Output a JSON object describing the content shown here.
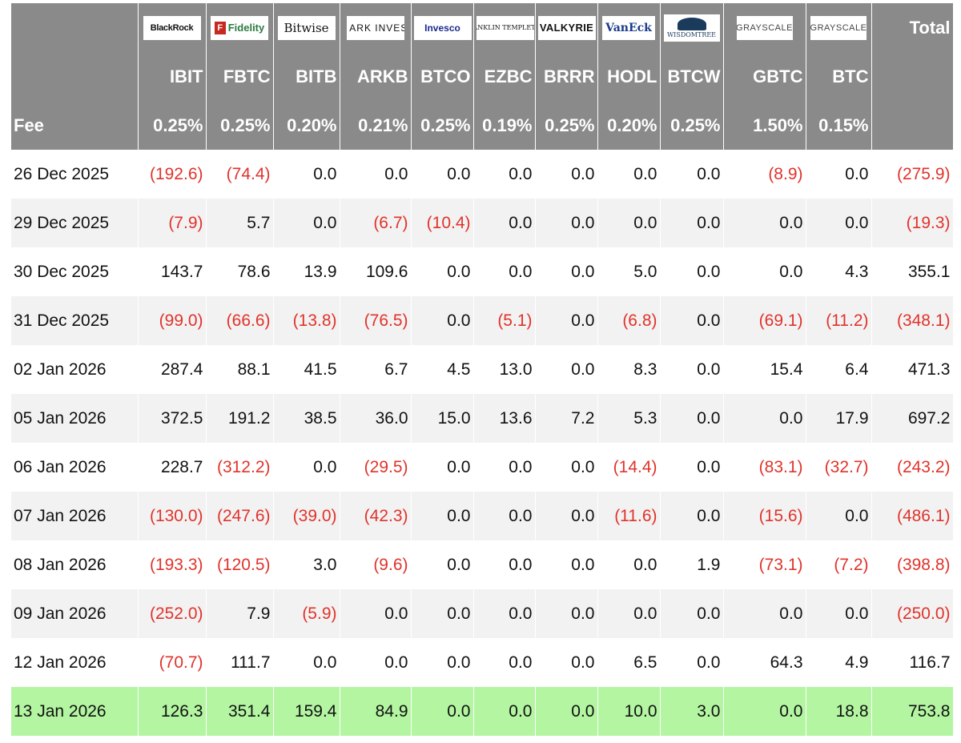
{
  "logos": [
    {
      "name": "blackrock-logo",
      "text": "BlackRock"
    },
    {
      "name": "fidelity-logo",
      "text": "Fidelity"
    },
    {
      "name": "bitwise-logo",
      "text": "Bitwise"
    },
    {
      "name": "ark-invest-logo",
      "text": "ARK INVEST"
    },
    {
      "name": "invesco-logo",
      "text": "Invesco"
    },
    {
      "name": "franklin-templeton-logo",
      "text": "FRANKLIN TEMPLETON"
    },
    {
      "name": "valkyrie-logo",
      "text": "VALKYRIE"
    },
    {
      "name": "vaneck-logo",
      "text": "VanEck"
    },
    {
      "name": "wisdomtree-logo",
      "text": "WISDOMTREE"
    },
    {
      "name": "grayscale-logo-gbtc",
      "text": "GRAYSCALE"
    },
    {
      "name": "grayscale-logo-btc",
      "text": "GRAYSCALE"
    }
  ],
  "header": {
    "total_label": "Total",
    "fee_label": "Fee",
    "tickers": [
      "IBIT",
      "FBTC",
      "BITB",
      "ARKB",
      "BTCO",
      "EZBC",
      "BRRR",
      "HODL",
      "BTCW",
      "GBTC",
      "BTC"
    ],
    "fees": [
      "0.25%",
      "0.25%",
      "0.20%",
      "0.21%",
      "0.25%",
      "0.19%",
      "0.25%",
      "0.20%",
      "0.25%",
      "1.50%",
      "0.15%"
    ]
  },
  "colors": {
    "header_bg": "#8a8a8a",
    "negative": "#e0332b",
    "highlight": "#b3f5a1"
  },
  "rows": [
    {
      "date": "26 Dec 2025",
      "values": [
        "(192.6)",
        "(74.4)",
        "0.0",
        "0.0",
        "0.0",
        "0.0",
        "0.0",
        "0.0",
        "0.0",
        "(8.9)",
        "0.0"
      ],
      "total": "(275.9)"
    },
    {
      "date": "29 Dec 2025",
      "values": [
        "(7.9)",
        "5.7",
        "0.0",
        "(6.7)",
        "(10.4)",
        "0.0",
        "0.0",
        "0.0",
        "0.0",
        "0.0",
        "0.0"
      ],
      "total": "(19.3)"
    },
    {
      "date": "30 Dec 2025",
      "values": [
        "143.7",
        "78.6",
        "13.9",
        "109.6",
        "0.0",
        "0.0",
        "0.0",
        "5.0",
        "0.0",
        "0.0",
        "4.3"
      ],
      "total": "355.1"
    },
    {
      "date": "31 Dec 2025",
      "values": [
        "(99.0)",
        "(66.6)",
        "(13.8)",
        "(76.5)",
        "0.0",
        "(5.1)",
        "0.0",
        "(6.8)",
        "0.0",
        "(69.1)",
        "(11.2)"
      ],
      "total": "(348.1)"
    },
    {
      "date": "02 Jan 2026",
      "values": [
        "287.4",
        "88.1",
        "41.5",
        "6.7",
        "4.5",
        "13.0",
        "0.0",
        "8.3",
        "0.0",
        "15.4",
        "6.4"
      ],
      "total": "471.3"
    },
    {
      "date": "05 Jan 2026",
      "values": [
        "372.5",
        "191.2",
        "38.5",
        "36.0",
        "15.0",
        "13.6",
        "7.2",
        "5.3",
        "0.0",
        "0.0",
        "17.9"
      ],
      "total": "697.2"
    },
    {
      "date": "06 Jan 2026",
      "values": [
        "228.7",
        "(312.2)",
        "0.0",
        "(29.5)",
        "0.0",
        "0.0",
        "0.0",
        "(14.4)",
        "0.0",
        "(83.1)",
        "(32.7)"
      ],
      "total": "(243.2)"
    },
    {
      "date": "07 Jan 2026",
      "values": [
        "(130.0)",
        "(247.6)",
        "(39.0)",
        "(42.3)",
        "0.0",
        "0.0",
        "0.0",
        "(11.6)",
        "0.0",
        "(15.6)",
        "0.0"
      ],
      "total": "(486.1)"
    },
    {
      "date": "08 Jan 2026",
      "values": [
        "(193.3)",
        "(120.5)",
        "3.0",
        "(9.6)",
        "0.0",
        "0.0",
        "0.0",
        "0.0",
        "1.9",
        "(73.1)",
        "(7.2)"
      ],
      "total": "(398.8)"
    },
    {
      "date": "09 Jan 2026",
      "values": [
        "(252.0)",
        "7.9",
        "(5.9)",
        "0.0",
        "0.0",
        "0.0",
        "0.0",
        "0.0",
        "0.0",
        "0.0",
        "0.0"
      ],
      "total": "(250.0)"
    },
    {
      "date": "12 Jan 2026",
      "values": [
        "(70.7)",
        "111.7",
        "0.0",
        "0.0",
        "0.0",
        "0.0",
        "0.0",
        "6.5",
        "0.0",
        "64.3",
        "4.9"
      ],
      "total": "116.7"
    },
    {
      "date": "13 Jan 2026",
      "values": [
        "126.3",
        "351.4",
        "159.4",
        "84.9",
        "0.0",
        "0.0",
        "0.0",
        "10.0",
        "3.0",
        "0.0",
        "18.8"
      ],
      "total": "753.8",
      "highlight": true
    }
  ]
}
